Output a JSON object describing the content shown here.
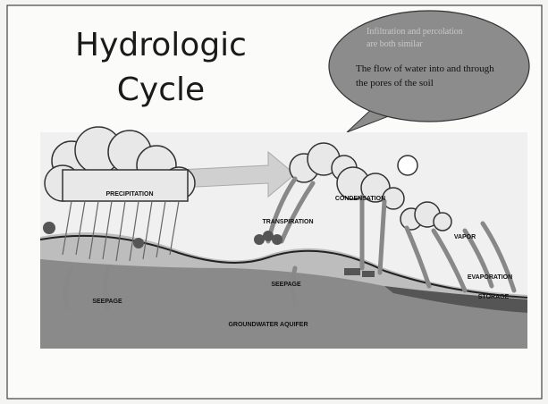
{
  "slide": {
    "title": [
      "Hydrologic",
      "Cycle"
    ],
    "bubble": {
      "note": [
        "Infiltration and percolation",
        "are both similar"
      ],
      "text": [
        "The flow of water into and through",
        "the pores of the soil"
      ]
    },
    "diagram": {
      "labels": [
        "PRECIPITATION",
        "TRANSPIRATION",
        "CONDENSATION",
        "VAPOR",
        "EVAPORATION",
        "STORAGE",
        "SEEPAGE",
        "SEEPAGE",
        "GROUNDWATER AQUIFER"
      ]
    }
  }
}
